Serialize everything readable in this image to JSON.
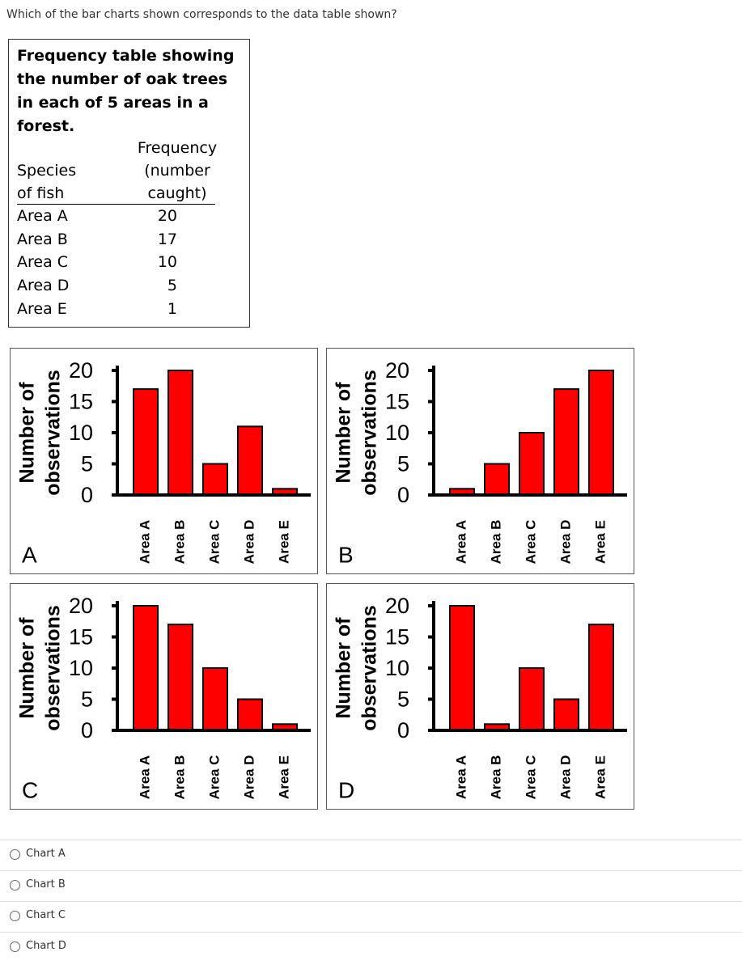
{
  "question": "Which of the bar charts shown corresponds to the data table shown?",
  "table": {
    "title": "Frequency table showing the number of oak trees in each of 5 areas in a forest.",
    "headers": [
      "Species of fish",
      "Frequency (number caught)"
    ],
    "rows": [
      [
        "Area A",
        "20"
      ],
      [
        "Area B",
        "17"
      ],
      [
        "Area C",
        "10"
      ],
      [
        "Area D",
        "5"
      ],
      [
        "Area E",
        "1"
      ]
    ]
  },
  "chart_data": [
    {
      "type": "bar",
      "label": "A",
      "ylabel": [
        "Number of",
        "observations"
      ],
      "categories": [
        "Area A",
        "Area B",
        "Area C",
        "Area D",
        "Area E"
      ],
      "values": [
        17,
        20,
        5,
        11,
        1
      ],
      "color": "#ff0000",
      "ylim": [
        0,
        20
      ],
      "yticks": [
        0,
        5,
        10,
        15,
        20
      ]
    },
    {
      "type": "bar",
      "label": "B",
      "ylabel": [
        "Number of",
        "observations"
      ],
      "categories": [
        "Area A",
        "Area B",
        "Area C",
        "Area D",
        "Area E"
      ],
      "values": [
        1,
        5,
        10,
        17,
        20
      ],
      "color": "#ff0000",
      "ylim": [
        0,
        20
      ],
      "yticks": [
        0,
        5,
        10,
        15,
        20
      ]
    },
    {
      "type": "bar",
      "label": "C",
      "ylabel": [
        "Number of",
        "observations"
      ],
      "categories": [
        "Area A",
        "Area B",
        "Area C",
        "Area D",
        "Area E"
      ],
      "values": [
        20,
        17,
        10,
        5,
        1
      ],
      "color": "#ff0000",
      "ylim": [
        0,
        20
      ],
      "yticks": [
        0,
        5,
        10,
        15,
        20
      ]
    },
    {
      "type": "bar",
      "label": "D",
      "ylabel": [
        "Number of",
        "observations"
      ],
      "categories": [
        "Area A",
        "Area B",
        "Area C",
        "Area D",
        "Area E"
      ],
      "values": [
        20,
        1,
        10,
        5,
        17
      ],
      "color": "#ff0000",
      "ylim": [
        0,
        20
      ],
      "yticks": [
        0,
        5,
        10,
        15,
        20
      ]
    }
  ],
  "options": [
    "Chart A",
    "Chart B",
    "Chart C",
    "Chart D"
  ]
}
